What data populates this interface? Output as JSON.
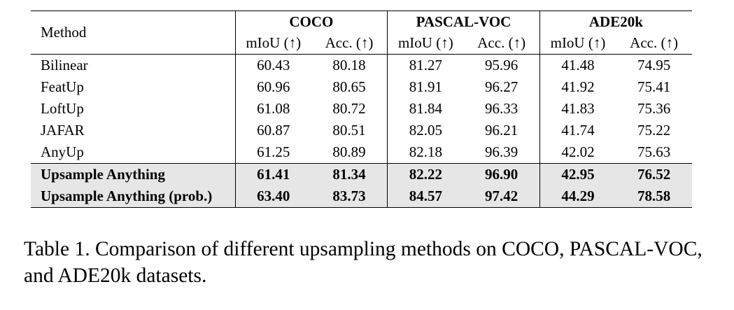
{
  "table": {
    "method_header": "Method",
    "datasets": [
      "COCO",
      "PASCAL-VOC",
      "ADE20k"
    ],
    "metrics": [
      "mIoU (↑)",
      "Acc. (↑)",
      "mIoU (↑)",
      "Acc. (↑)",
      "mIoU (↑)",
      "Acc. (↑)"
    ],
    "rows": [
      {
        "method": "Bilinear",
        "values": [
          "60.43",
          "80.18",
          "81.27",
          "95.96",
          "41.48",
          "74.95"
        ]
      },
      {
        "method": "FeatUp",
        "values": [
          "60.96",
          "80.65",
          "81.91",
          "96.27",
          "41.92",
          "75.41"
        ]
      },
      {
        "method": "LoftUp",
        "values": [
          "61.08",
          "80.72",
          "81.84",
          "96.33",
          "41.83",
          "75.36"
        ]
      },
      {
        "method": "JAFAR",
        "values": [
          "60.87",
          "80.51",
          "82.05",
          "96.21",
          "41.74",
          "75.22"
        ]
      },
      {
        "method": "AnyUp",
        "values": [
          "61.25",
          "80.89",
          "82.18",
          "96.39",
          "42.02",
          "75.63"
        ]
      },
      {
        "method": "Upsample Anything",
        "values": [
          "61.41",
          "81.34",
          "82.22",
          "96.90",
          "42.95",
          "76.52"
        ],
        "highlight": true
      },
      {
        "method": "Upsample Anything (prob.)",
        "values": [
          "63.40",
          "83.73",
          "84.57",
          "97.42",
          "44.29",
          "78.58"
        ],
        "highlight": true
      }
    ]
  },
  "caption": "Table 1. Comparison of different upsampling methods on COCO, PASCAL-VOC, and ADE20k datasets."
}
